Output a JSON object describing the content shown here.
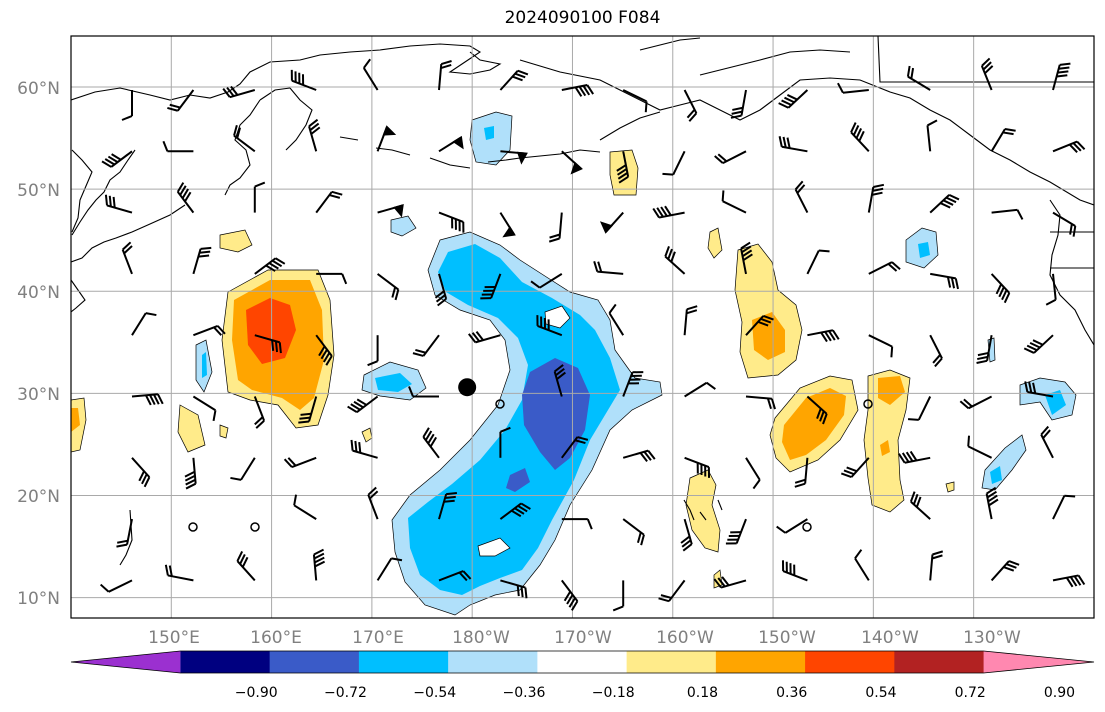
{
  "title": "2024090100 F084",
  "map": {
    "lat_labels": [
      "10°N",
      "20°N",
      "30°N",
      "40°N",
      "50°N",
      "60°N"
    ],
    "lon_labels": [
      "150°E",
      "160°E",
      "170°E",
      "180°W",
      "170°W",
      "160°W",
      "150°W",
      "140°W",
      "130°W"
    ],
    "lat_values": [
      10,
      20,
      30,
      40,
      50,
      60
    ],
    "lon_values": [
      150,
      160,
      170,
      180,
      190,
      200,
      210,
      220,
      230
    ],
    "extent": {
      "lon_min": 140,
      "lon_max": 242,
      "lat_min": 8,
      "lat_max": 65
    },
    "grid": true,
    "marker": {
      "name": "black-dot",
      "lon": 179.5,
      "lat": 30.6
    }
  },
  "colorbar": {
    "ticks": [
      "−0.90",
      "−0.72",
      "−0.54",
      "−0.36",
      "−0.18",
      "0.18",
      "0.36",
      "0.54",
      "0.72",
      "0.90"
    ],
    "colors": [
      "#9b30d0",
      "#000080",
      "#3a5bc8",
      "#00bfff",
      "#b0e0fa",
      "#ffffff",
      "#ffeb8a",
      "#ffa500",
      "#ff4500",
      "#b22222",
      "#ff88b0"
    ],
    "extend": "both"
  },
  "colors": {
    "land_outline": "#000000",
    "grid": "#a9a9a9",
    "barb": "#000000"
  }
}
